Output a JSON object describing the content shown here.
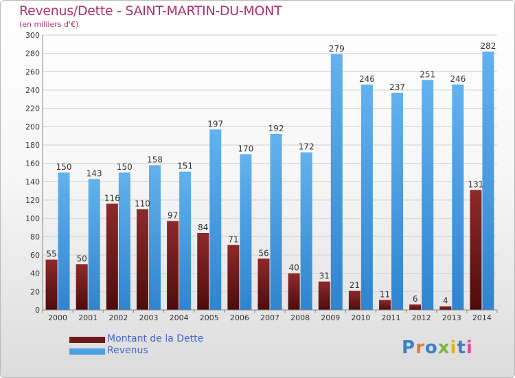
{
  "header": {
    "title": "Revenus/Dette - SAINT-MARTIN-DU-MONT",
    "subtitle": "(en milliers d'€)"
  },
  "logo": {
    "text": "Proxiti",
    "letter_colors": [
      "#3a7fc9",
      "#e8792a",
      "#3a7fc9",
      "#7ab83a",
      "#d9b52a",
      "#3a7fc9",
      "#e04a9a"
    ]
  },
  "legend": {
    "items": [
      {
        "label": "Montant de la Dette",
        "color": "#6e1b1b"
      },
      {
        "label": "Revenus",
        "color": "#4aa1e4"
      }
    ]
  },
  "colors": {
    "debt_top": "#8e2a2a",
    "debt_bottom": "#4d0c0c",
    "revenue_top": "#62b2ee",
    "revenue_bottom": "#2f84cf",
    "grid": "#d0d0d0",
    "axis_text": "#333333"
  },
  "chart_data": {
    "type": "bar",
    "categories": [
      "2000",
      "2001",
      "2002",
      "2003",
      "2004",
      "2005",
      "2006",
      "2007",
      "2008",
      "2009",
      "2010",
      "2011",
      "2012",
      "2013",
      "2014"
    ],
    "series": [
      {
        "name": "Montant de la Dette",
        "values": [
          55,
          50,
          116,
          110,
          97,
          84,
          71,
          56,
          40,
          31,
          21,
          11,
          6,
          4,
          131
        ]
      },
      {
        "name": "Revenus",
        "values": [
          150,
          143,
          150,
          158,
          151,
          197,
          170,
          192,
          172,
          279,
          246,
          237,
          251,
          246,
          282
        ]
      }
    ],
    "ylim": [
      0,
      300
    ],
    "yticks": [
      0,
      20,
      40,
      60,
      80,
      100,
      120,
      140,
      160,
      180,
      200,
      220,
      240,
      260,
      280,
      300
    ],
    "grid": true,
    "legend_position": "bottom-left"
  }
}
